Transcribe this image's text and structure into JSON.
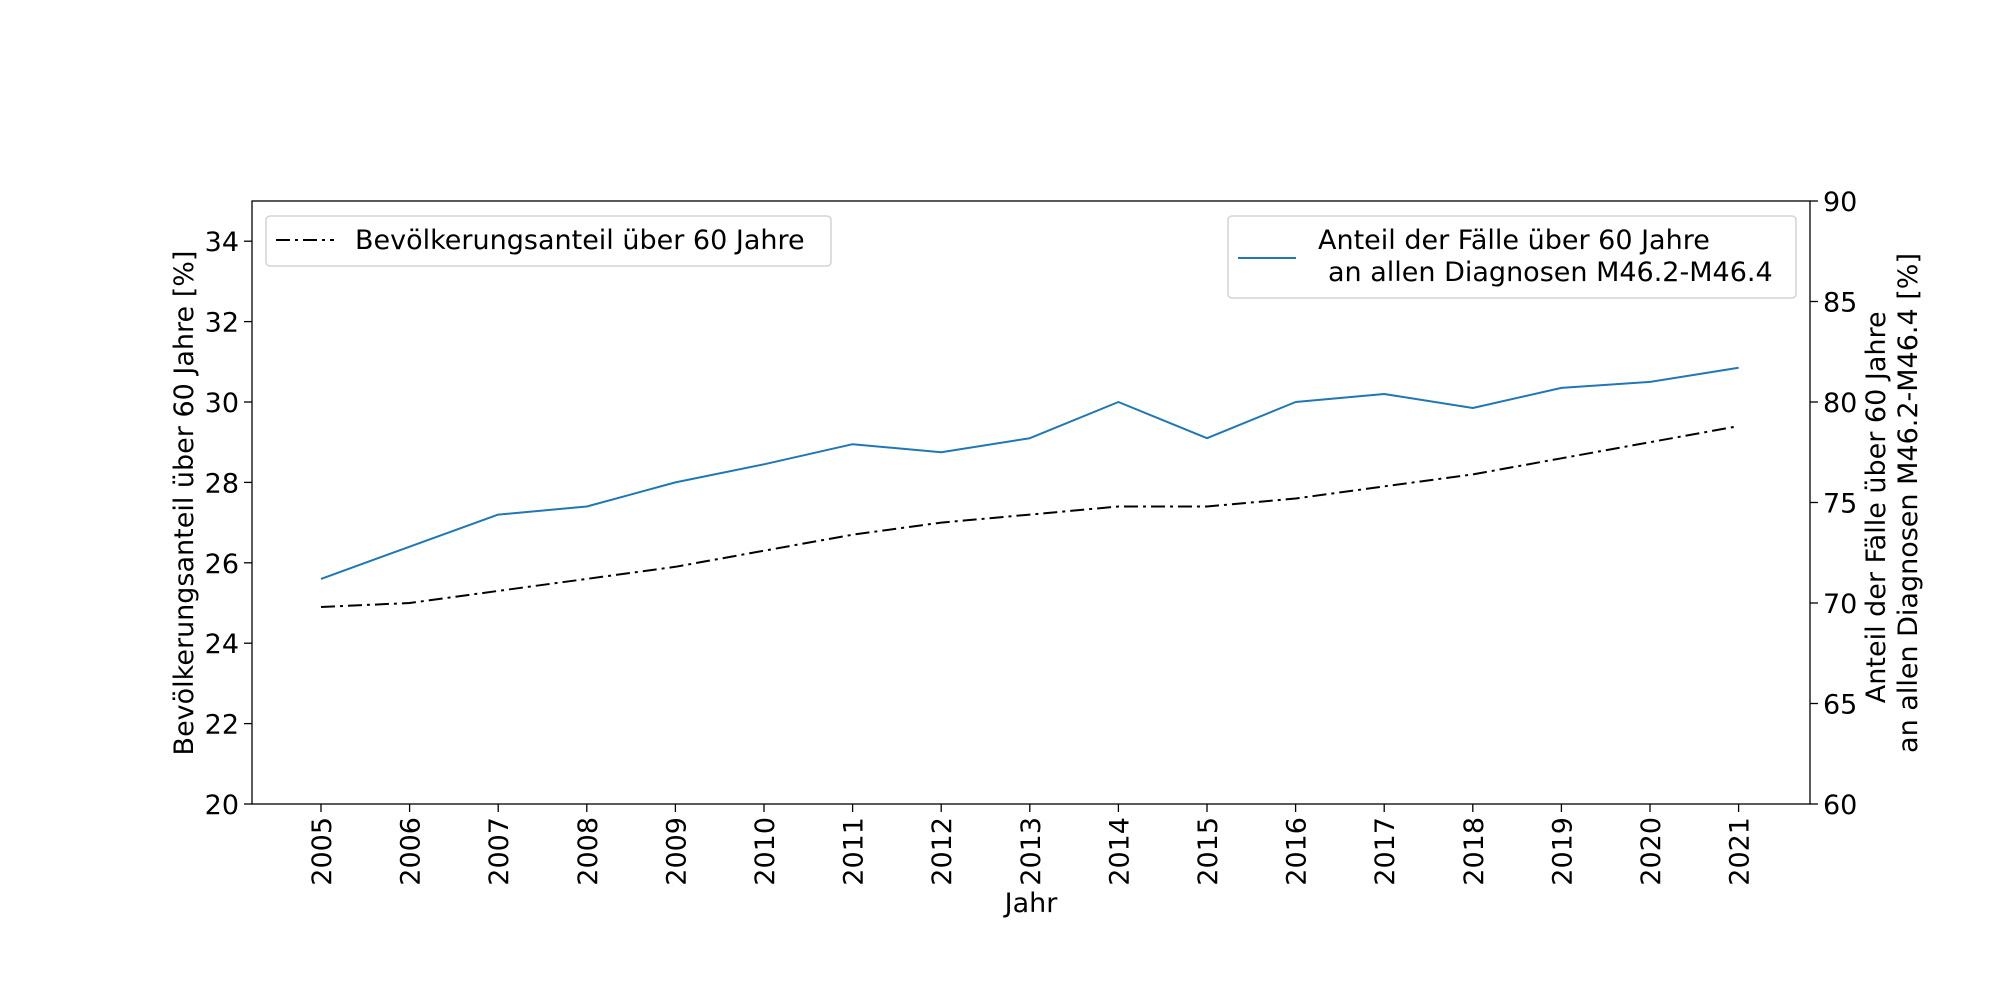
{
  "chart_data": {
    "type": "line",
    "xlabel": "Jahr",
    "x": [
      "2005",
      "2006",
      "2007",
      "2008",
      "2009",
      "2010",
      "2011",
      "2012",
      "2013",
      "2014",
      "2015",
      "2016",
      "2017",
      "2018",
      "2019",
      "2020",
      "2021"
    ],
    "left_axis": {
      "label": "Bevölkerungsanteil über 60 Jahre [%]",
      "ylim": [
        20,
        35
      ],
      "ticks": [
        20,
        22,
        24,
        26,
        28,
        30,
        32,
        34
      ]
    },
    "right_axis": {
      "label_lines": [
        "Anteil der Fälle über 60 Jahre",
        "an allen Diagnosen M46.2-M46.4 [%]"
      ],
      "ylim": [
        60,
        90
      ],
      "ticks": [
        60,
        65,
        70,
        75,
        80,
        85,
        90
      ]
    },
    "series": [
      {
        "name": "Bevölkerungsanteil über 60 Jahre",
        "axis": "left",
        "color": "#000000",
        "style": "dash-dot",
        "values": [
          24.9,
          25.0,
          25.3,
          25.6,
          25.9,
          26.3,
          26.7,
          27.0,
          27.2,
          27.4,
          27.4,
          27.6,
          27.9,
          28.2,
          28.6,
          29.0,
          29.4
        ]
      },
      {
        "name_lines": [
          "Anteil der Fälle über 60 Jahre",
          "an allen Diagnosen M46.2-M46.4"
        ],
        "axis": "right",
        "color": "#1f77b4",
        "style": "solid",
        "values": [
          71.2,
          72.8,
          74.4,
          74.8,
          76.0,
          76.9,
          77.9,
          77.5,
          78.2,
          80.0,
          78.2,
          80.0,
          80.4,
          79.7,
          80.7,
          81.0,
          81.7
        ]
      }
    ],
    "grid": false,
    "legend_placement": [
      "top-left",
      "top-right"
    ]
  }
}
